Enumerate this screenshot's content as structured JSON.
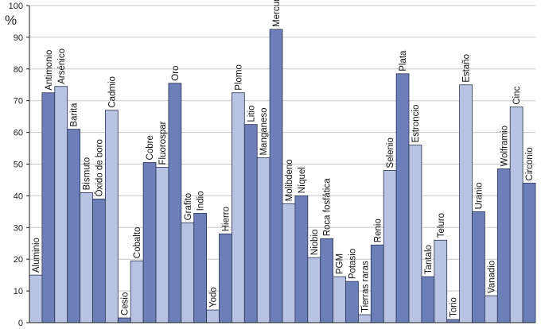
{
  "chart_data": {
    "type": "bar",
    "title": "",
    "xlabel": "",
    "ylabel": "%",
    "ylim": [
      0,
      100
    ],
    "yticks": [
      0,
      10,
      20,
      30,
      40,
      50,
      60,
      70,
      80,
      90,
      100
    ],
    "grid": true,
    "categories": [
      "Aluminio",
      "Antimonio",
      "Arsénico",
      "Barita",
      "Bismuto",
      "Óxido de boro",
      "Cadmio",
      "Cesio",
      "Cobalto",
      "Cobre",
      "Fluorospar",
      "Oro",
      "Grafito",
      "Indio",
      "Yodo",
      "Hierro",
      "Plomo",
      "Litio",
      "Manganeso",
      "Mercurio",
      "Molibdeno",
      "Níquel",
      "Niobio",
      "Roca fosfática",
      "PGM",
      "Potasio",
      "Tierras raras",
      "Renio",
      "Selenio",
      "Plata",
      "Estroncio",
      "Tantalo",
      "Teluro",
      "Torio",
      "Estaño",
      "Uranio",
      "Vanadio",
      "Wolframio",
      "Cinc",
      "Circonio"
    ],
    "values": [
      15,
      72.5,
      74.5,
      61,
      41,
      39,
      67,
      1.5,
      19.5,
      50.5,
      49,
      75.5,
      31.5,
      34.5,
      4,
      28,
      72.5,
      62.5,
      52,
      92.5,
      37.5,
      40,
      20.5,
      26.5,
      14.5,
      13,
      2.5,
      24.5,
      48,
      78.5,
      56,
      14.5,
      26,
      1,
      75,
      35,
      8.5,
      48.5,
      68,
      44
    ],
    "shades": [
      "light",
      "dark",
      "light",
      "dark",
      "light",
      "dark",
      "light",
      "dark",
      "light",
      "dark",
      "light",
      "dark",
      "light",
      "dark",
      "light",
      "dark",
      "light",
      "dark",
      "light",
      "dark",
      "light",
      "dark",
      "light",
      "dark",
      "light",
      "dark",
      "light",
      "dark",
      "light",
      "dark",
      "light",
      "dark",
      "light",
      "dark",
      "light",
      "dark",
      "light",
      "dark",
      "light",
      "dark"
    ]
  },
  "colors": {
    "light": "#b8c2e2",
    "dark": "#6c7fb8",
    "edge": "#2a3350",
    "grid": "#c8c8c8",
    "axis": "#222222",
    "background": "#ffffff"
  }
}
